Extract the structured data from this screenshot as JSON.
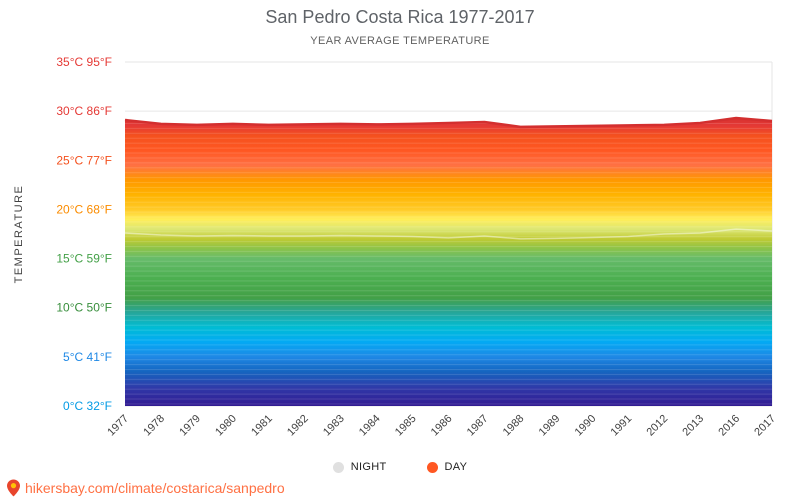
{
  "chart_data": {
    "type": "area",
    "title": "San Pedro Costa Rica 1977-2017",
    "subtitle": "YEAR AVERAGE TEMPERATURE",
    "ylabel": "TEMPERATURE",
    "ylim": [
      0,
      35
    ],
    "grid": true,
    "legend_position": "bottom",
    "x": [
      "1977",
      "1978",
      "1979",
      "1980",
      "1981",
      "1982",
      "1983",
      "1984",
      "1985",
      "1986",
      "1987",
      "1988",
      "1989",
      "1990",
      "1991",
      "2012",
      "2013",
      "2016",
      "2017"
    ],
    "series": [
      {
        "name": "DAY",
        "color": "#ff5722",
        "values": [
          29.1,
          28.7,
          28.6,
          28.7,
          28.6,
          28.65,
          28.7,
          28.65,
          28.7,
          28.8,
          28.9,
          28.4,
          28.45,
          28.5,
          28.55,
          28.6,
          28.8,
          29.3,
          29.0
        ]
      },
      {
        "name": "NIGHT",
        "color": "#e0e0e0",
        "values": [
          17.6,
          17.4,
          17.3,
          17.35,
          17.3,
          17.3,
          17.35,
          17.3,
          17.25,
          17.1,
          17.3,
          17.0,
          17.05,
          17.15,
          17.25,
          17.5,
          17.6,
          18.0,
          17.8
        ]
      }
    ],
    "yticks": [
      {
        "t": 35,
        "label": "35°C 95°F",
        "color": "#e53935"
      },
      {
        "t": 30,
        "label": "30°C 86°F",
        "color": "#e53935"
      },
      {
        "t": 25,
        "label": "25°C 77°F",
        "color": "#f4511e"
      },
      {
        "t": 20,
        "label": "20°C 68°F",
        "color": "#fb8c00"
      },
      {
        "t": 15,
        "label": "15°C 59°F",
        "color": "#43a047"
      },
      {
        "t": 10,
        "label": "10°C 50°F",
        "color": "#388e3c"
      },
      {
        "t": 5,
        "label": "5°C 41°F",
        "color": "#1e88e5"
      },
      {
        "t": 0,
        "label": "0°C 32°F",
        "color": "#039be5"
      }
    ],
    "legend": [
      {
        "label": "NIGHT",
        "color": "#e0e0e0"
      },
      {
        "label": "DAY",
        "color": "#ff5722"
      }
    ],
    "gradient": [
      {
        "t": 0,
        "color": "#311b92"
      },
      {
        "t": 1.8,
        "color": "#3038a8"
      },
      {
        "t": 3.5,
        "color": "#1565c0"
      },
      {
        "t": 5,
        "color": "#1e88e5"
      },
      {
        "t": 6.5,
        "color": "#03a9f4"
      },
      {
        "t": 8,
        "color": "#00bcd4"
      },
      {
        "t": 9.5,
        "color": "#26a69a"
      },
      {
        "t": 11,
        "color": "#43a047"
      },
      {
        "t": 13,
        "color": "#4caf50"
      },
      {
        "t": 15,
        "color": "#66bb6a"
      },
      {
        "t": 16,
        "color": "#8bc34a"
      },
      {
        "t": 17,
        "color": "#c0ca33"
      },
      {
        "t": 18,
        "color": "#dce775"
      },
      {
        "t": 19,
        "color": "#ffee58"
      },
      {
        "t": 20,
        "color": "#ffca28"
      },
      {
        "t": 21.5,
        "color": "#ffb300"
      },
      {
        "t": 23,
        "color": "#ff9800"
      },
      {
        "t": 24.5,
        "color": "#ff7043"
      },
      {
        "t": 26,
        "color": "#ff5722"
      },
      {
        "t": 27.5,
        "color": "#f4511e"
      },
      {
        "t": 28.5,
        "color": "#e53935"
      },
      {
        "t": 29.5,
        "color": "#d32f2f"
      }
    ],
    "line_colors": {
      "day_top_edge": "#d32f2f",
      "night_seam": "rgba(255,255,255,0.45)",
      "grid": "#e6e6e6",
      "axis_text": "#424242"
    }
  },
  "footer": {
    "url": "hikersbay.com/climate/costarica/sanpedro",
    "link_color": "#ff7043"
  }
}
